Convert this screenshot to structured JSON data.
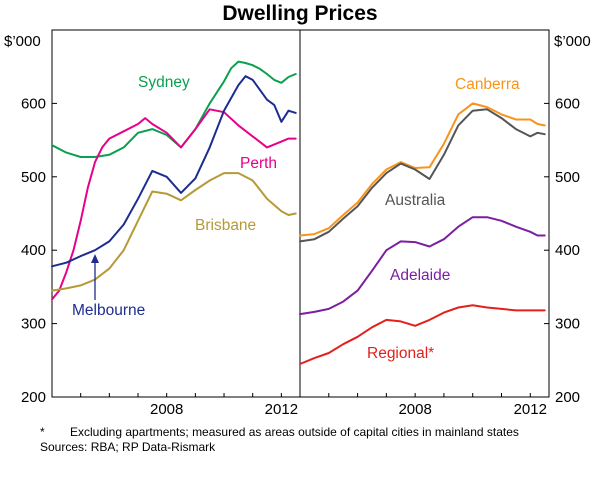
{
  "chart_data": {
    "title": "Dwelling Prices",
    "type": "line",
    "y_unit": "$’000",
    "ylim": [
      200,
      700
    ],
    "y_ticks": [
      200,
      300,
      400,
      500,
      600
    ],
    "x_ticks": [
      2008,
      2012
    ],
    "xlim": [
      2004.0,
      2012.65
    ],
    "grid": false,
    "panels": [
      {
        "side": "left",
        "series": [
          {
            "name": "Sydney",
            "color": "#0aa04f",
            "x": [
              2004.0,
              2004.5,
              2005.0,
              2005.5,
              2006.0,
              2006.5,
              2007.0,
              2007.5,
              2008.0,
              2008.5,
              2009.0,
              2009.5,
              2010.0,
              2010.25,
              2010.5,
              2010.75,
              2011.0,
              2011.25,
              2011.5,
              2011.75,
              2012.0,
              2012.25,
              2012.5
            ],
            "y": [
              543,
              533,
              527,
              527,
              530,
              540,
              560,
              565,
              557,
              540,
              565,
              600,
              630,
              648,
              657,
              655,
              652,
              647,
              640,
              632,
              628,
              636,
              640
            ]
          },
          {
            "name": "Perth",
            "color": "#e6008a",
            "x": [
              2004.0,
              2004.25,
              2004.5,
              2004.75,
              2005.0,
              2005.25,
              2005.5,
              2005.75,
              2006.0,
              2006.5,
              2007.0,
              2007.25,
              2007.5,
              2008.0,
              2008.5,
              2009.0,
              2009.5,
              2010.0,
              2010.5,
              2011.0,
              2011.5,
              2012.0,
              2012.25,
              2012.5
            ],
            "y": [
              333,
              345,
              370,
              400,
              440,
              485,
              520,
              540,
              552,
              562,
              572,
              580,
              572,
              560,
              540,
              565,
              592,
              588,
              570,
              555,
              540,
              548,
              552,
              552
            ]
          },
          {
            "name": "Melbourne",
            "color": "#1d2d8f",
            "x": [
              2004.0,
              2004.5,
              2005.0,
              2005.5,
              2006.0,
              2006.5,
              2007.0,
              2007.5,
              2008.0,
              2008.5,
              2009.0,
              2009.5,
              2010.0,
              2010.5,
              2010.75,
              2011.0,
              2011.5,
              2011.75,
              2012.0,
              2012.25,
              2012.5
            ],
            "y": [
              378,
              383,
              392,
              400,
              412,
              435,
              470,
              508,
              500,
              478,
              498,
              540,
              590,
              625,
              637,
              632,
              605,
              598,
              575,
              590,
              587
            ]
          },
          {
            "name": "Brisbane",
            "color": "#b59a37",
            "x": [
              2004.0,
              2004.5,
              2005.0,
              2005.5,
              2006.0,
              2006.5,
              2007.0,
              2007.5,
              2008.0,
              2008.5,
              2009.0,
              2009.5,
              2010.0,
              2010.5,
              2011.0,
              2011.5,
              2012.0,
              2012.25,
              2012.5
            ],
            "y": [
              345,
              348,
              352,
              360,
              375,
              400,
              440,
              480,
              477,
              468,
              482,
              495,
              505,
              505,
              495,
              470,
              453,
              448,
              450
            ]
          }
        ]
      },
      {
        "side": "right",
        "series": [
          {
            "name": "Canberra",
            "color": "#f7941d",
            "x": [
              2004.0,
              2004.5,
              2005.0,
              2005.5,
              2006.0,
              2006.5,
              2007.0,
              2007.5,
              2008.0,
              2008.5,
              2009.0,
              2009.5,
              2010.0,
              2010.5,
              2011.0,
              2011.5,
              2012.0,
              2012.25,
              2012.5
            ],
            "y": [
              420,
              422,
              430,
              448,
              465,
              490,
              510,
              520,
              512,
              513,
              545,
              585,
              600,
              595,
              585,
              578,
              578,
              572,
              570
            ]
          },
          {
            "name": "Australia",
            "color": "#555555",
            "x": [
              2004.0,
              2004.5,
              2005.0,
              2005.5,
              2006.0,
              2006.5,
              2007.0,
              2007.5,
              2008.0,
              2008.5,
              2009.0,
              2009.5,
              2010.0,
              2010.5,
              2011.0,
              2011.5,
              2012.0,
              2012.25,
              2012.5
            ],
            "y": [
              412,
              415,
              425,
              443,
              460,
              485,
              505,
              518,
              510,
              497,
              530,
              570,
              590,
              592,
              580,
              565,
              555,
              560,
              558
            ]
          },
          {
            "name": "Adelaide",
            "color": "#7a1fa2",
            "x": [
              2004.0,
              2004.5,
              2005.0,
              2005.5,
              2006.0,
              2006.5,
              2007.0,
              2007.5,
              2008.0,
              2008.5,
              2009.0,
              2009.5,
              2010.0,
              2010.5,
              2011.0,
              2011.5,
              2012.0,
              2012.25,
              2012.5
            ],
            "y": [
              313,
              316,
              320,
              330,
              345,
              372,
              400,
              412,
              411,
              405,
              415,
              432,
              445,
              445,
              440,
              432,
              425,
              420,
              420
            ]
          },
          {
            "name": "Regional*",
            "color": "#e2211c",
            "x": [
              2004.0,
              2004.5,
              2005.0,
              2005.5,
              2006.0,
              2006.5,
              2007.0,
              2007.5,
              2008.0,
              2008.5,
              2009.0,
              2009.5,
              2010.0,
              2010.5,
              2011.0,
              2011.5,
              2012.0,
              2012.25,
              2012.5
            ],
            "y": [
              245,
              253,
              260,
              272,
              282,
              295,
              305,
              303,
              297,
              305,
              315,
              322,
              325,
              322,
              320,
              318,
              318,
              318,
              318
            ]
          }
        ]
      }
    ]
  },
  "footnote": {
    "mark": "*",
    "text": "Excluding apartments; measured as areas outside of capital cities in mainland states"
  },
  "sources": "Sources: RBA; RP Data-Rismark"
}
